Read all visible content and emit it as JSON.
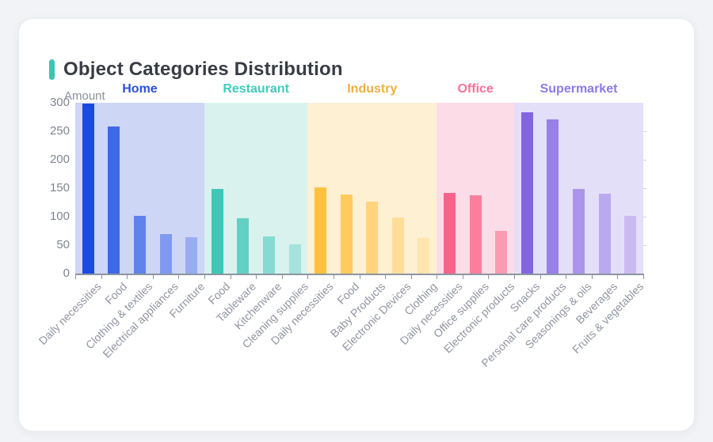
{
  "chart_data": {
    "type": "bar",
    "title": "Object Categories Distribution",
    "ylabel": "Amount",
    "ylim": [
      0,
      300
    ],
    "y_ticks": [
      0,
      50,
      100,
      150,
      200,
      250,
      300
    ],
    "accent_color": "#3fc3b4",
    "legend_position": "none",
    "grid": false,
    "groups": [
      {
        "name": "Home",
        "text_color": "#2b50e0",
        "panel_color": "#cdd6f5",
        "bars": [
          {
            "category": "Daily necessities",
            "value": 298,
            "color": "#1b4ae1"
          },
          {
            "category": "Food",
            "value": 258,
            "color": "#3f68e7"
          },
          {
            "category": "Clothing & textiles",
            "value": 102,
            "color": "#5f82eb"
          },
          {
            "category": "Electrical appliances",
            "value": 69,
            "color": "#7f9af0"
          },
          {
            "category": "Furniture",
            "value": 64,
            "color": "#98acf2"
          }
        ]
      },
      {
        "name": "Restaurant",
        "text_color": "#3fccbe",
        "panel_color": "#d9f2ee",
        "bars": [
          {
            "category": "Food",
            "value": 148,
            "color": "#3ec7b9"
          },
          {
            "category": "Tableware",
            "value": 97,
            "color": "#63d0c5"
          },
          {
            "category": "Kitchenware",
            "value": 65,
            "color": "#86dad1"
          },
          {
            "category": "Cleaning supplies",
            "value": 51,
            "color": "#a4e3db"
          }
        ]
      },
      {
        "name": "Industry",
        "text_color": "#eeb041",
        "panel_color": "#fdf0d3",
        "bars": [
          {
            "category": "Daily necessities",
            "value": 151,
            "color": "#ffc13f"
          },
          {
            "category": "Food",
            "value": 139,
            "color": "#ffcb5e"
          },
          {
            "category": "Baby Products",
            "value": 126,
            "color": "#ffd47d"
          },
          {
            "category": "Electronic Devices",
            "value": 99,
            "color": "#ffdd99"
          },
          {
            "category": "Clothing",
            "value": 63,
            "color": "#ffe4ae"
          }
        ]
      },
      {
        "name": "Office",
        "text_color": "#f9719a",
        "panel_color": "#fcdce7",
        "bars": [
          {
            "category": "Daily necessities",
            "value": 142,
            "color": "#fa6389"
          },
          {
            "category": "Office supplies",
            "value": 138,
            "color": "#fb7e9d"
          },
          {
            "category": "Electronic products",
            "value": 75,
            "color": "#fd9ab3"
          }
        ]
      },
      {
        "name": "Supermarket",
        "text_color": "#8d79e8",
        "panel_color": "#e3dff9",
        "bars": [
          {
            "category": "Snacks",
            "value": 284,
            "color": "#8166e0"
          },
          {
            "category": "Personal care products",
            "value": 271,
            "color": "#9780e7"
          },
          {
            "category": "Seasonings & oils",
            "value": 148,
            "color": "#aa95eb"
          },
          {
            "category": "Beverages",
            "value": 140,
            "color": "#bba9ef"
          },
          {
            "category": "Fruits & vegetables",
            "value": 101,
            "color": "#c9bbf2"
          }
        ]
      }
    ]
  }
}
